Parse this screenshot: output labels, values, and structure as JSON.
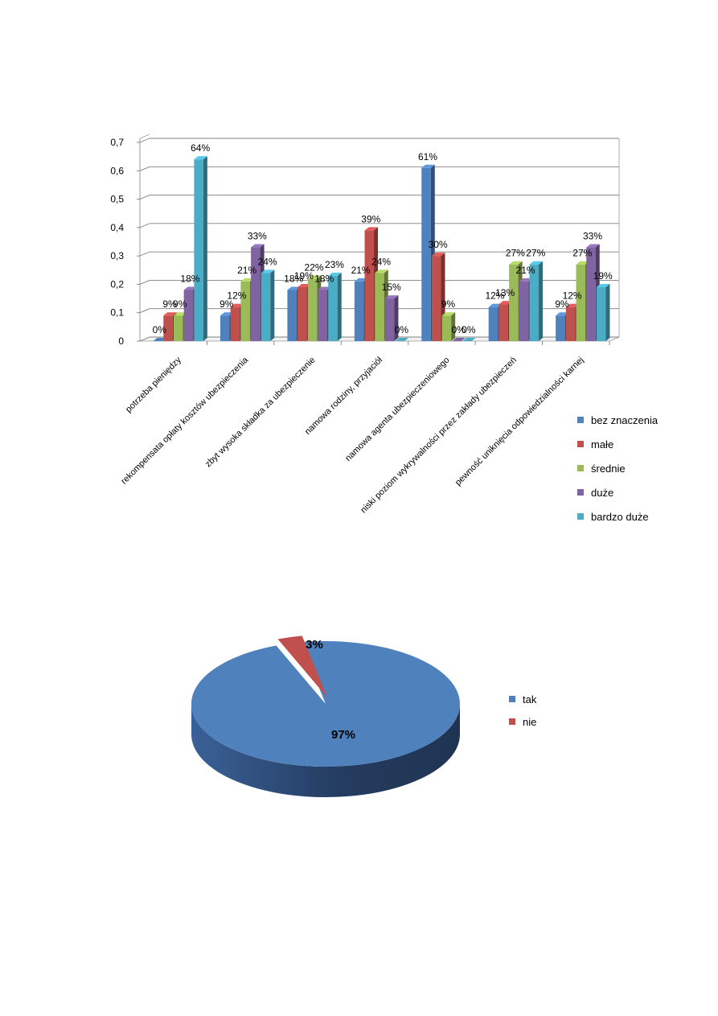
{
  "chart_data": [
    {
      "type": "bar",
      "style": "3d-clustered",
      "categories": [
        "potrzeba pieniędzy",
        "rekompensata opłaty kosztów ubezpieczenia",
        "zbyt wysoka składka za ubezpieczenie",
        "namowa rodziny, przyjaciół",
        "namowa agenta ubezpieczeniowego",
        "niski poziom wykrywalności przez zakłady ubezpieczeń",
        "pewność uniknięcia odpowiedzialności karnej"
      ],
      "series": [
        {
          "name": "bez znaczenia",
          "color": "#4f81bd",
          "values": [
            0,
            0.09,
            0.18,
            0.21,
            0.61,
            0.12,
            0.09
          ],
          "labels": [
            "0%",
            "9%",
            "18%",
            "21%",
            "61%",
            "12%",
            "9%"
          ]
        },
        {
          "name": "małe",
          "color": "#c0504d",
          "values": [
            0.09,
            0.12,
            0.19,
            0.39,
            0.3,
            0.13,
            0.12
          ],
          "labels": [
            "9%",
            "12%",
            "19%",
            "39%",
            "30%",
            "13%",
            "12%"
          ]
        },
        {
          "name": "średnie",
          "color": "#9bbb59",
          "values": [
            0.09,
            0.21,
            0.22,
            0.24,
            0.09,
            0.27,
            0.27
          ],
          "labels": [
            "9%",
            "21%",
            "22%",
            "24%",
            "9%",
            "27%",
            "27%"
          ]
        },
        {
          "name": "duże",
          "color": "#8064a2",
          "values": [
            0.18,
            0.33,
            0.18,
            0.15,
            0,
            0.21,
            0.33
          ],
          "labels": [
            "18%",
            "33%",
            "18%",
            "15%",
            "0%",
            "21%",
            "33%"
          ]
        },
        {
          "name": "bardzo duże",
          "color": "#4bacc6",
          "values": [
            0.64,
            0.24,
            0.23,
            0,
            0,
            0.27,
            0.19
          ],
          "labels": [
            "64%",
            "24%",
            "23%",
            "0%",
            "0%",
            "27%",
            "19%"
          ]
        }
      ],
      "ylim": [
        0,
        0.7
      ],
      "yticks": [
        "0",
        "0,1",
        "0,2",
        "0,3",
        "0,4",
        "0,5",
        "0,6",
        "0,7"
      ],
      "grid": true,
      "legend_position": "right"
    },
    {
      "type": "pie",
      "style": "3d",
      "slices": [
        {
          "name": "tak",
          "value": 97,
          "label": "97%",
          "color": "#4f81bd"
        },
        {
          "name": "nie",
          "value": 3,
          "label": "3%",
          "color": "#c0504d"
        }
      ],
      "legend_position": "right"
    }
  ]
}
